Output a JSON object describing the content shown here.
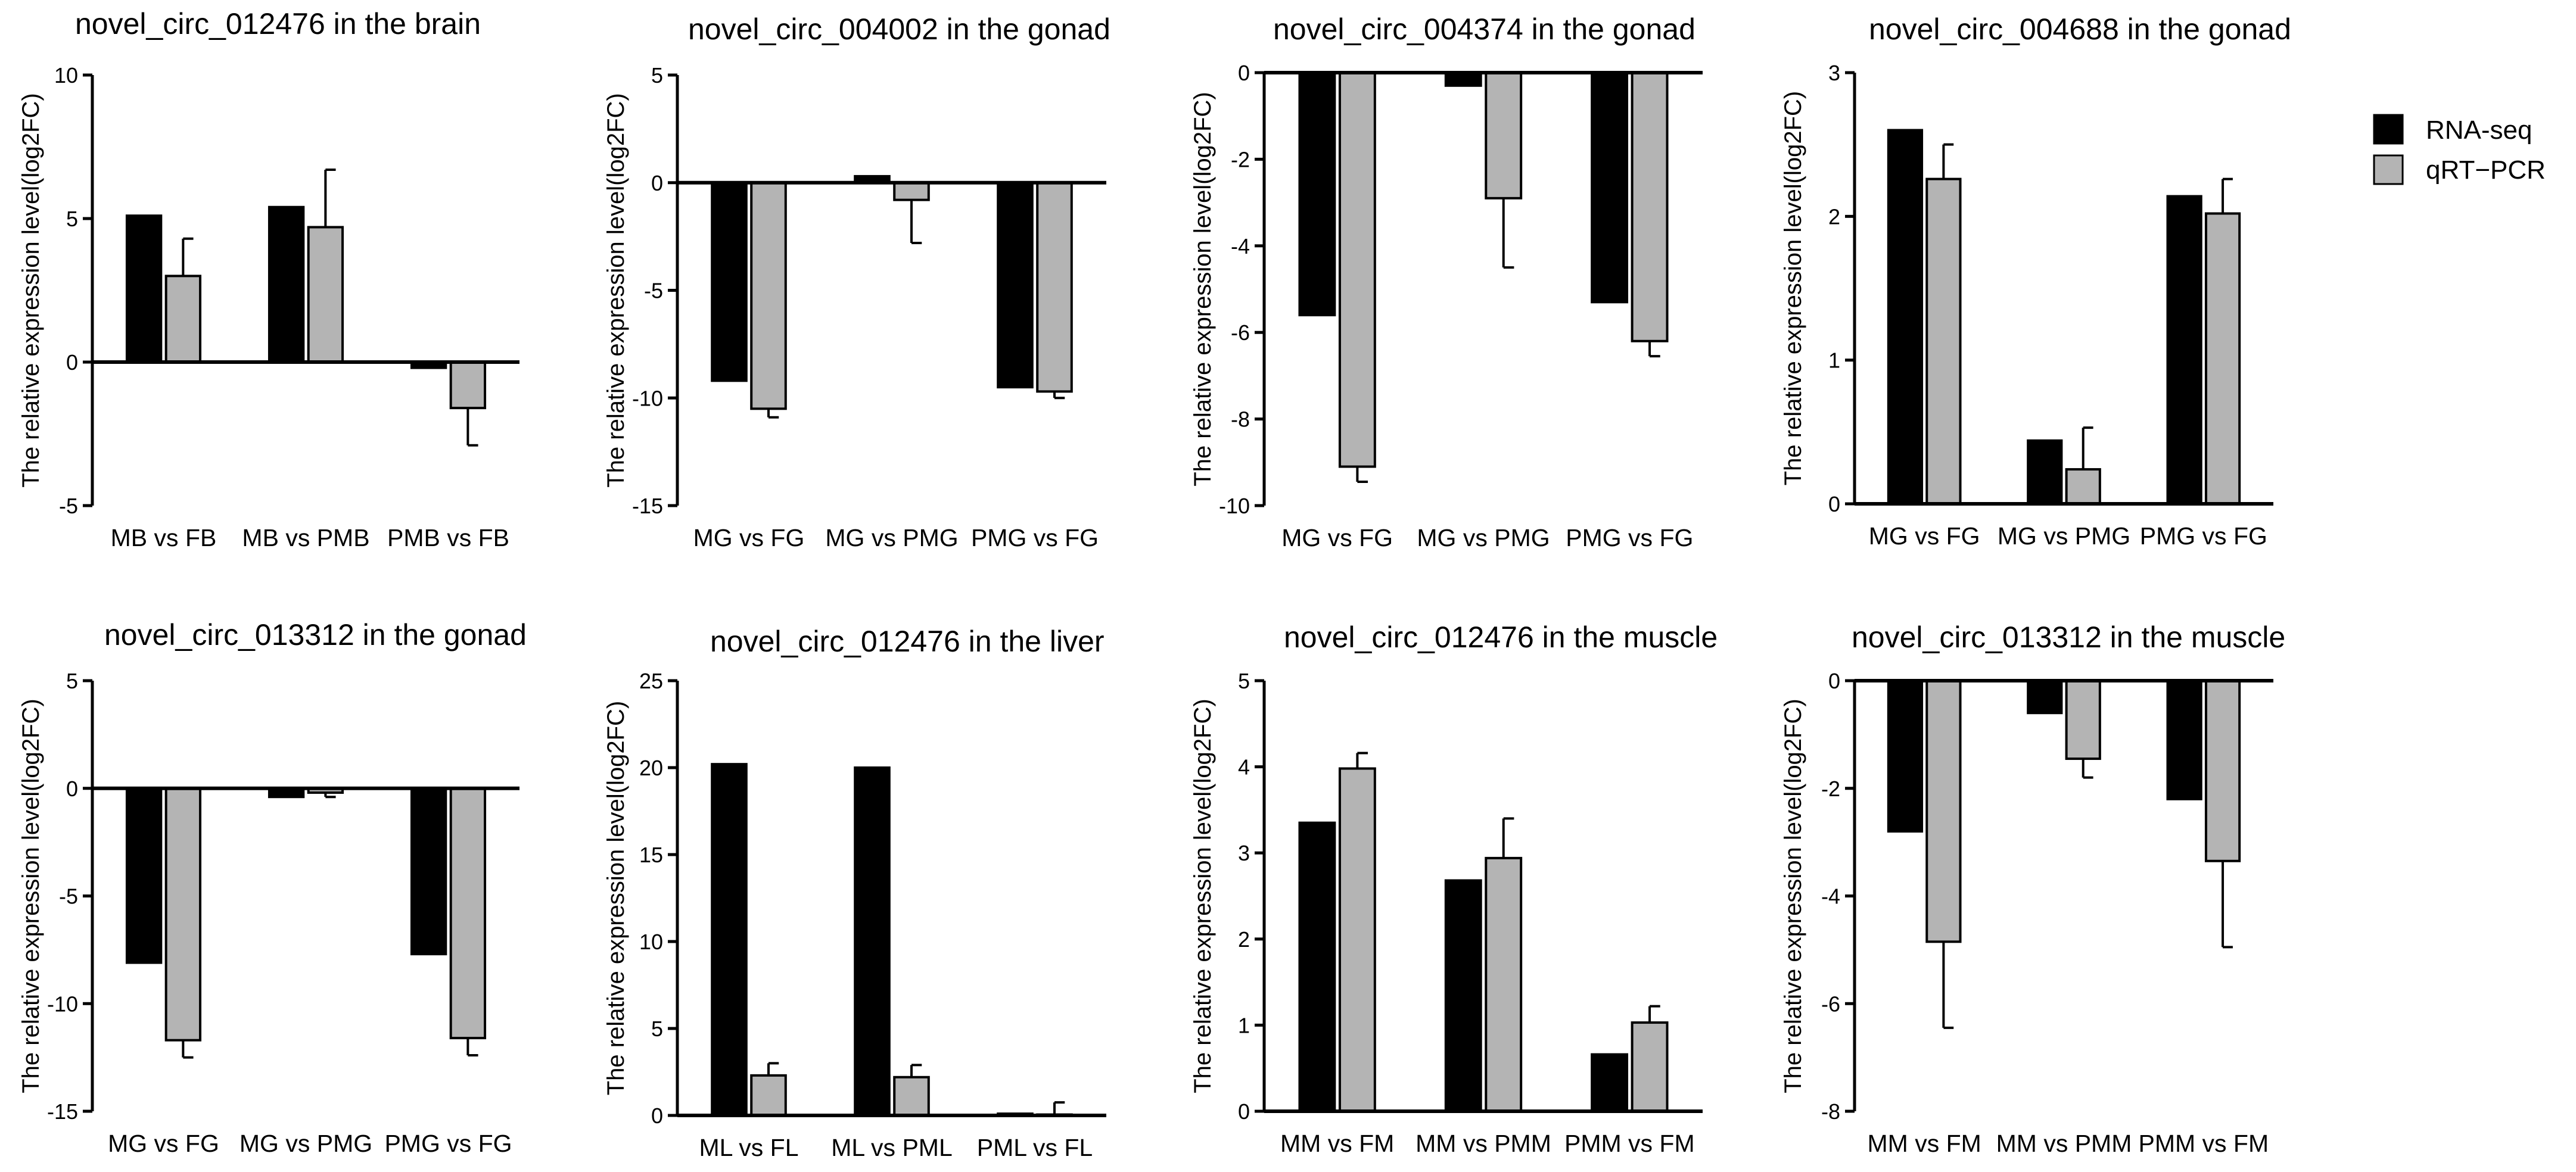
{
  "figure": {
    "legend": [
      {
        "name": "RNA-seq",
        "color": "#000000"
      },
      {
        "name": "qRT−PCR",
        "color": "#b4b4b4"
      }
    ]
  },
  "chart_data": [
    {
      "type": "bar",
      "title": "novel_circ_012476 in the brain",
      "ylabel": "The relative expression level(log2FC)",
      "categories": [
        "MB vs FB",
        "MB vs PMB",
        "PMB vs FB"
      ],
      "ylim": [
        -5,
        10
      ],
      "yticks": [
        -5,
        0,
        5,
        10
      ],
      "series": [
        {
          "name": "RNA-seq",
          "values": [
            5.1,
            5.4,
            -0.2
          ]
        },
        {
          "name": "qRT−PCR",
          "values": [
            3.0,
            4.7,
            -1.6
          ],
          "errors": [
            1.3,
            2.0,
            1.3
          ]
        }
      ]
    },
    {
      "type": "bar",
      "title": "novel_circ_004002 in the gonad",
      "ylabel": "The relative expression level(log2FC)",
      "categories": [
        "MG vs FG",
        "MG vs PMG",
        "PMG vs FG"
      ],
      "ylim": [
        -15,
        5
      ],
      "yticks": [
        -15,
        -10,
        -5,
        0,
        5
      ],
      "series": [
        {
          "name": "RNA-seq",
          "values": [
            -9.2,
            0.3,
            -9.5
          ]
        },
        {
          "name": "qRT−PCR",
          "values": [
            -10.5,
            -0.8,
            -9.7
          ],
          "errors": [
            0.4,
            2.0,
            0.3
          ]
        }
      ]
    },
    {
      "type": "bar",
      "title": "novel_circ_004374 in the gonad",
      "ylabel": "The relative expression level(log2FC)",
      "categories": [
        "MG vs FG",
        "MG vs PMG",
        "PMG vs FG"
      ],
      "ylim": [
        -10,
        0
      ],
      "yticks": [
        -10,
        -8,
        -6,
        -4,
        -2,
        0
      ],
      "series": [
        {
          "name": "RNA-seq",
          "values": [
            -5.6,
            -0.3,
            -5.3
          ]
        },
        {
          "name": "qRT−PCR",
          "values": [
            -9.1,
            -2.9,
            -6.2
          ],
          "errors": [
            0.35,
            1.6,
            0.35
          ]
        }
      ]
    },
    {
      "type": "bar",
      "title": "novel_circ_004688 in the gonad",
      "ylabel": "The relative expression level(log2FC)",
      "categories": [
        "MG vs FG",
        "MG vs PMG",
        "PMG vs FG"
      ],
      "ylim": [
        0,
        3
      ],
      "yticks": [
        0,
        1,
        2,
        3
      ],
      "series": [
        {
          "name": "RNA-seq",
          "values": [
            2.6,
            0.44,
            2.14
          ]
        },
        {
          "name": "qRT−PCR",
          "values": [
            2.26,
            0.24,
            2.02
          ],
          "errors": [
            0.24,
            0.29,
            0.24
          ]
        }
      ]
    },
    {
      "type": "bar",
      "title": "novel_circ_013312 in the gonad",
      "ylabel": "The relative expression level(log2FC)",
      "categories": [
        "MG vs FG",
        "MG vs PMG",
        "PMG vs FG"
      ],
      "ylim": [
        -15,
        5
      ],
      "yticks": [
        -15,
        -10,
        -5,
        0,
        5
      ],
      "series": [
        {
          "name": "RNA-seq",
          "values": [
            -8.1,
            -0.4,
            -7.7
          ]
        },
        {
          "name": "qRT−PCR",
          "values": [
            -11.7,
            -0.2,
            -11.6
          ],
          "errors": [
            0.8,
            0.2,
            0.8
          ]
        }
      ]
    },
    {
      "type": "bar",
      "title": "novel_circ_012476 in the liver",
      "ylabel": "The relative expression level(log2FC)",
      "categories": [
        "ML vs FL",
        "ML vs PML",
        "PML vs FL"
      ],
      "ylim": [
        0,
        25
      ],
      "yticks": [
        0,
        5,
        10,
        15,
        20,
        25
      ],
      "series": [
        {
          "name": "RNA-seq",
          "values": [
            20.2,
            20.0,
            0.1
          ]
        },
        {
          "name": "qRT−PCR",
          "values": [
            2.3,
            2.2,
            0.05
          ],
          "errors": [
            0.7,
            0.7,
            0.7
          ]
        }
      ]
    },
    {
      "type": "bar",
      "title": "novel_circ_012476 in the muscle",
      "ylabel": "The relative expression level(log2FC)",
      "categories": [
        "MM vs FM",
        "MM vs PMM",
        "PMM vs FM"
      ],
      "ylim": [
        0,
        5
      ],
      "yticks": [
        0,
        1,
        2,
        3,
        4,
        5
      ],
      "series": [
        {
          "name": "RNA-seq",
          "values": [
            3.35,
            2.68,
            0.66
          ]
        },
        {
          "name": "qRT−PCR",
          "values": [
            3.98,
            2.94,
            1.03
          ],
          "errors": [
            0.18,
            0.46,
            0.19
          ]
        }
      ]
    },
    {
      "type": "bar",
      "title": "novel_circ_013312 in the muscle",
      "ylabel": "The relative expression level(log2FC)",
      "categories": [
        "MM vs FM",
        "MM vs PMM",
        "PMM vs FM"
      ],
      "ylim": [
        -8,
        0
      ],
      "yticks": [
        -8,
        -6,
        -4,
        -2,
        0
      ],
      "series": [
        {
          "name": "RNA-seq",
          "values": [
            -2.8,
            -0.6,
            -2.2
          ]
        },
        {
          "name": "qRT−PCR",
          "values": [
            -4.85,
            -1.45,
            -3.35
          ],
          "errors": [
            1.6,
            0.35,
            1.6
          ]
        }
      ]
    }
  ]
}
